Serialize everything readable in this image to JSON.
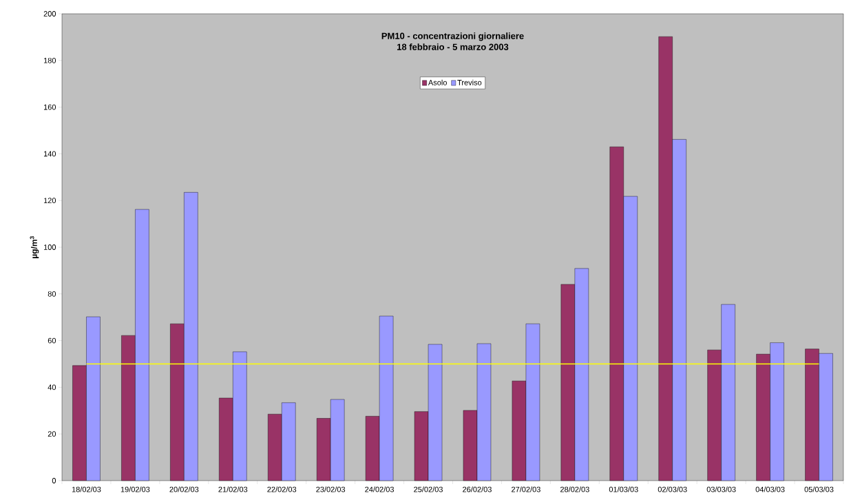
{
  "chart_data": {
    "type": "bar",
    "title": "PM10 - concentrazioni giornaliere",
    "subtitle": "18 febbraio - 5 marzo 2003",
    "ylabel": "µg/m$^{3}$",
    "categories": [
      "18/02/03",
      "19/02/03",
      "20/02/03",
      "21/02/03",
      "22/02/03",
      "23/02/03",
      "24/02/03",
      "25/02/03",
      "26/02/03",
      "27/02/03",
      "28/02/03",
      "01/03/03",
      "02/03/03",
      "03/03/03",
      "04/03/03",
      "05/03/03"
    ],
    "series": [
      {
        "name": "Asolo",
        "color": "#993366",
        "values": [
          49.3,
          62.2,
          67.2,
          35.4,
          28.5,
          26.7,
          27.6,
          29.6,
          30.1,
          42.7,
          84.1,
          143,
          190.2,
          56,
          54.2,
          56.4
        ]
      },
      {
        "name": "Treviso",
        "color": "#9999ff",
        "values": [
          70.2,
          116.2,
          123.5,
          55.2,
          33.4,
          34.8,
          70.5,
          58.4,
          58.7,
          67.2,
          90.9,
          121.8,
          146.2,
          75.5,
          59.1,
          54.5
        ]
      }
    ],
    "ylim": [
      0,
      200
    ],
    "yticks": [
      0,
      20,
      40,
      60,
      80,
      100,
      120,
      140,
      160,
      180,
      200
    ],
    "ref_lines": [
      {
        "axis": "y",
        "value": 50,
        "color": "#ffff00"
      }
    ],
    "legend": "top",
    "grid": false
  }
}
